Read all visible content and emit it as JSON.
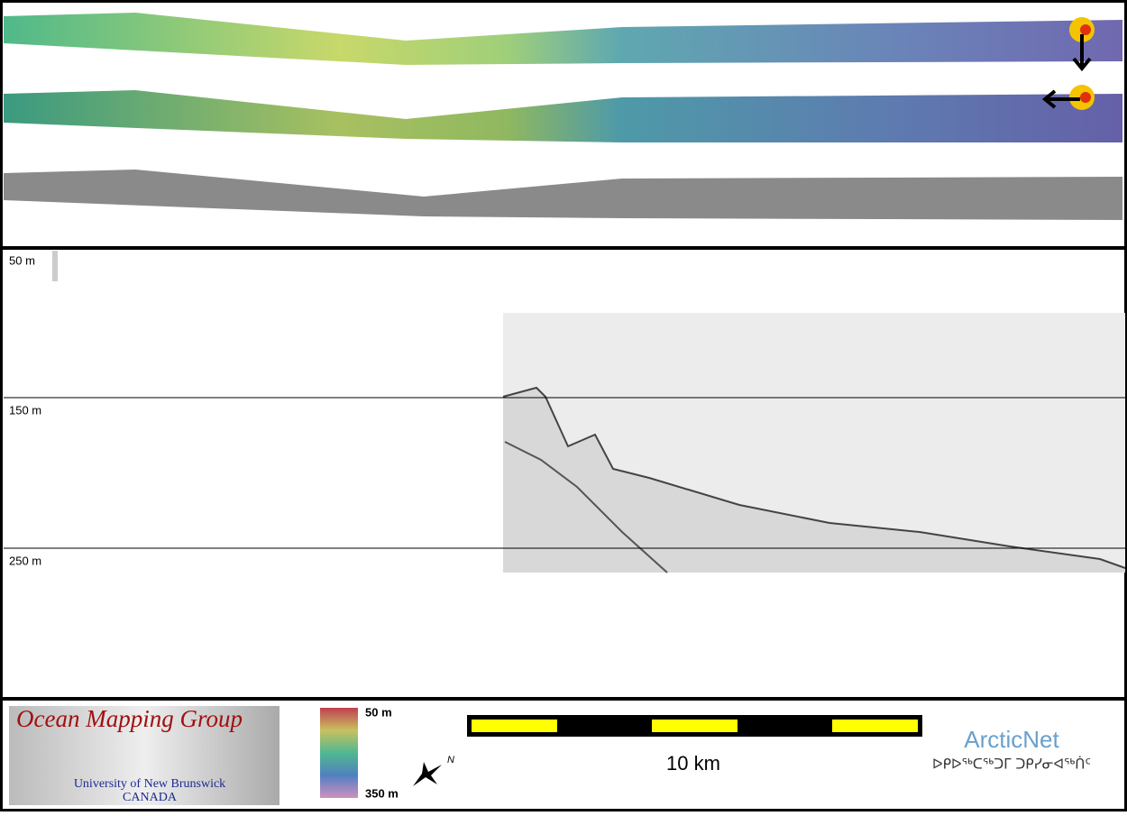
{
  "profile": {
    "depth_labels": [
      "50 m",
      "150 m",
      "250 m"
    ]
  },
  "legend": {
    "logo_title": "Ocean Mapping Group",
    "logo_university": "University of New Brunswick",
    "logo_country": "CANADA",
    "colorbar_top": "50 m",
    "colorbar_bottom": "350 m",
    "north": "N",
    "scale_label": "10 km",
    "partner": "ArcticNet",
    "partner_subtitle": "ᐅᑭᐅᖅᑕᖅᑐᒥ ᑐᑭᓯᓂᐊᖅᑏᑦ"
  }
}
